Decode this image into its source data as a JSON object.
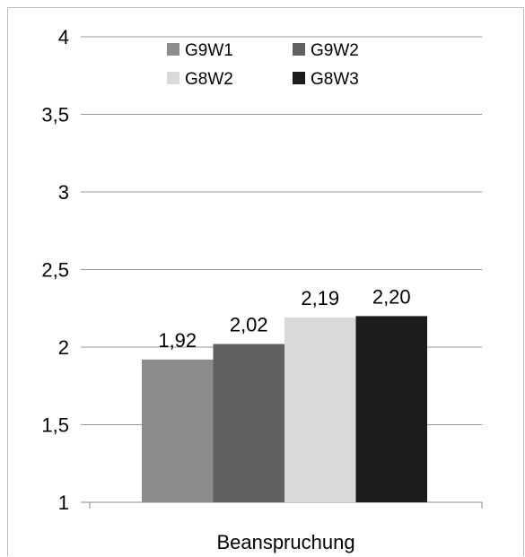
{
  "chart_data": {
    "type": "bar",
    "categories": [
      "Beanspruchung"
    ],
    "series": [
      {
        "name": "G9W1",
        "values": [
          1.92
        ],
        "label": "1,92",
        "color": "#8c8c8c"
      },
      {
        "name": "G9W2",
        "values": [
          2.02
        ],
        "label": "2,02",
        "color": "#606060"
      },
      {
        "name": "G8W2",
        "values": [
          2.19
        ],
        "label": "2,19",
        "color": "#d9d9d9"
      },
      {
        "name": "G8W3",
        "values": [
          2.2
        ],
        "label": "2,20",
        "color": "#1c1c1c"
      }
    ],
    "xlabel": "Beanspruchung",
    "ylabel": "",
    "ylim": [
      1,
      4
    ],
    "yticks": [
      {
        "value": 1,
        "label": "1"
      },
      {
        "value": 1.5,
        "label": "1,5"
      },
      {
        "value": 2,
        "label": "2"
      },
      {
        "value": 2.5,
        "label": "2,5"
      },
      {
        "value": 3,
        "label": "3"
      },
      {
        "value": 3.5,
        "label": "3,5"
      },
      {
        "value": 4,
        "label": "4"
      }
    ],
    "grid": true,
    "legend_position": "top",
    "gridline_color": "#999999"
  }
}
